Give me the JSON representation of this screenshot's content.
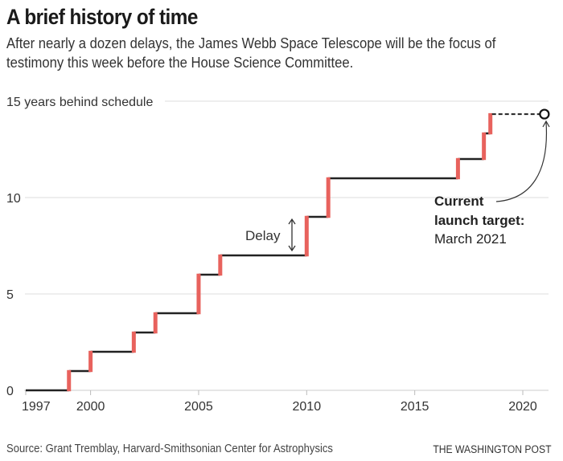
{
  "chart_data": {
    "type": "line",
    "style": "step",
    "title": "A brief history of time",
    "subtitle": "After nearly a dozen delays, the James Webb Space Telescope will be the focus of testimony this week before the House Science Committee.",
    "xlabel": "",
    "ylabel": "years behind schedule",
    "xlim": [
      1997,
      2021
    ],
    "ylim": [
      0,
      15
    ],
    "grid": true,
    "x_ticks": [
      1997,
      2000,
      2005,
      2010,
      2015,
      2020
    ],
    "x_tick_labels": [
      "1997",
      "2000",
      "2005",
      "2010",
      "2015",
      "2020"
    ],
    "y_ticks": [
      0,
      5,
      10,
      15
    ],
    "y_tick_labels": [
      "0",
      "5",
      "10",
      "15 years behind schedule"
    ],
    "series": [
      {
        "name": "Years behind schedule",
        "steps": [
          {
            "year": 1997,
            "value": 0
          },
          {
            "year": 1999,
            "value": 1
          },
          {
            "year": 2000,
            "value": 2
          },
          {
            "year": 2002,
            "value": 3
          },
          {
            "year": 2003,
            "value": 4
          },
          {
            "year": 2005,
            "value": 6
          },
          {
            "year": 2006,
            "value": 7
          },
          {
            "year": 2010,
            "value": 9
          },
          {
            "year": 2011,
            "value": 11
          },
          {
            "year": 2017,
            "value": 12
          },
          {
            "year": 2018.2,
            "value": 13.33
          },
          {
            "year": 2018.5,
            "value": 14.33
          }
        ],
        "projection": {
          "from_year": 2018.5,
          "to_year": 2021,
          "value": 14.33
        }
      }
    ],
    "colors": {
      "delay": "#e8625d",
      "schedule": "#222222",
      "grid": "#dddddd"
    },
    "annotations": {
      "delay_label": "Delay",
      "target_line1": "Current",
      "target_line2": "launch target:",
      "target_line3": "March 2021"
    }
  },
  "footer": {
    "source": "Source: Grant Tremblay, Harvard-Smithsonian Center for Astrophysics",
    "credit": "THE WASHINGTON POST"
  }
}
